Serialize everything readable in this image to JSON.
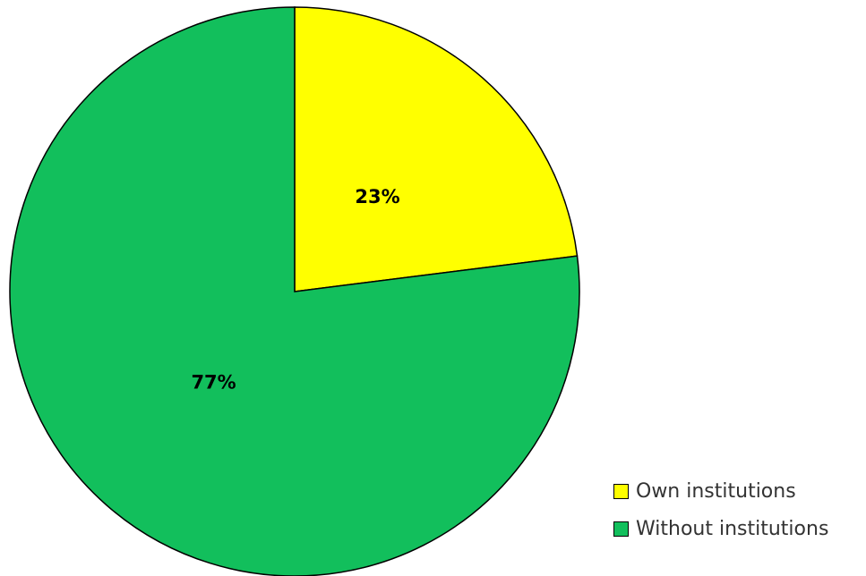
{
  "chart_data": {
    "type": "pie",
    "title": "",
    "legend_position": "bottom-right",
    "slices": [
      {
        "name": "Own institutions",
        "value": 23,
        "label": "23%",
        "color": "#ffff00"
      },
      {
        "name": "Without institutions",
        "value": 77,
        "label": "77%",
        "color": "#12bf5c"
      }
    ],
    "start": "12 o'clock",
    "direction": "clockwise"
  }
}
